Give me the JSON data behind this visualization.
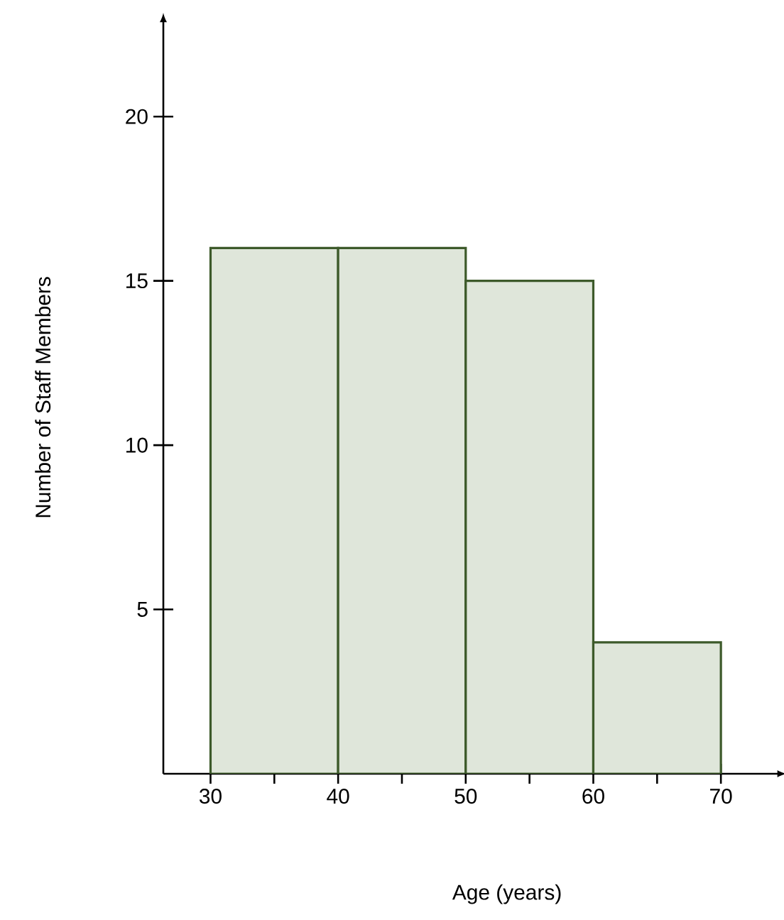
{
  "chart_data": {
    "type": "histogram",
    "xlabel": "Age (years)",
    "ylabel": "Number of Staff Members",
    "bins": [
      30,
      40,
      50,
      60,
      70
    ],
    "values": [
      16,
      16,
      15,
      4
    ],
    "color": "#dfe6da",
    "xlim": [
      26.3,
      74.5
    ],
    "ylim": [
      0,
      22.9
    ],
    "xticks": [
      30,
      {
        "value": 35,
        "label": null
      },
      40,
      {
        "value": 45,
        "label": null
      },
      50,
      {
        "value": 55,
        "label": null
      },
      60,
      {
        "value": 65,
        "label": null
      },
      70
    ],
    "yticks": [
      5,
      10,
      15,
      20
    ],
    "grid": false
  }
}
